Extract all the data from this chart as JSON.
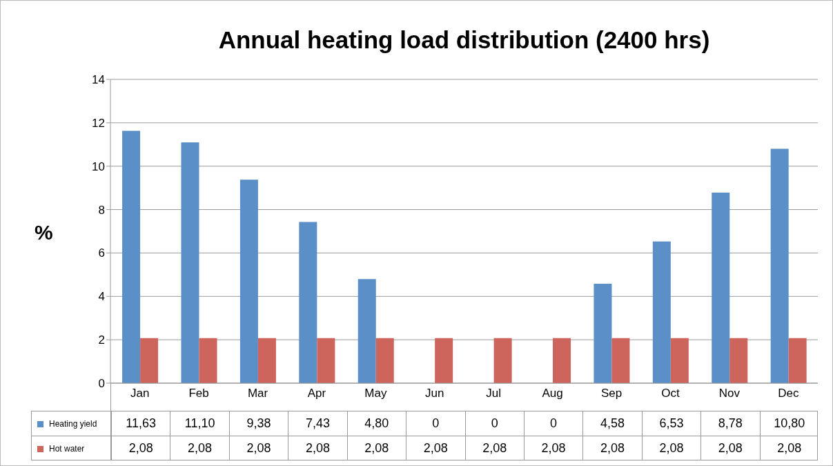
{
  "chart_data": {
    "type": "bar",
    "title": "Annual heating load distribution (2400 hrs)",
    "ylabel": "%",
    "categories": [
      "Jan",
      "Feb",
      "Mar",
      "Apr",
      "May",
      "Jun",
      "Jul",
      "Aug",
      "Sep",
      "Oct",
      "Nov",
      "Dec"
    ],
    "series": [
      {
        "name": "Heating yield",
        "color": "#5a8fc8",
        "values": [
          11.63,
          11.1,
          9.38,
          7.43,
          4.8,
          0,
          0,
          0,
          4.58,
          6.53,
          8.78,
          10.8
        ],
        "value_labels": [
          "11,63",
          "11,10",
          "9,38",
          "7,43",
          "4,80",
          "0",
          "0",
          "0",
          "4,58",
          "6,53",
          "8,78",
          "10,80"
        ]
      },
      {
        "name": "Hot water",
        "color": "#cd655d",
        "values": [
          2.08,
          2.08,
          2.08,
          2.08,
          2.08,
          2.08,
          2.08,
          2.08,
          2.08,
          2.08,
          2.08,
          2.08
        ],
        "value_labels": [
          "2,08",
          "2,08",
          "2,08",
          "2,08",
          "2,08",
          "2,08",
          "2,08",
          "2,08",
          "2,08",
          "2,08",
          "2,08",
          "2,08"
        ]
      }
    ],
    "ylim": [
      0,
      14
    ],
    "yticks": [
      0,
      2,
      4,
      6,
      8,
      10,
      12,
      14
    ],
    "grid": "y",
    "legend": "bottom left"
  }
}
